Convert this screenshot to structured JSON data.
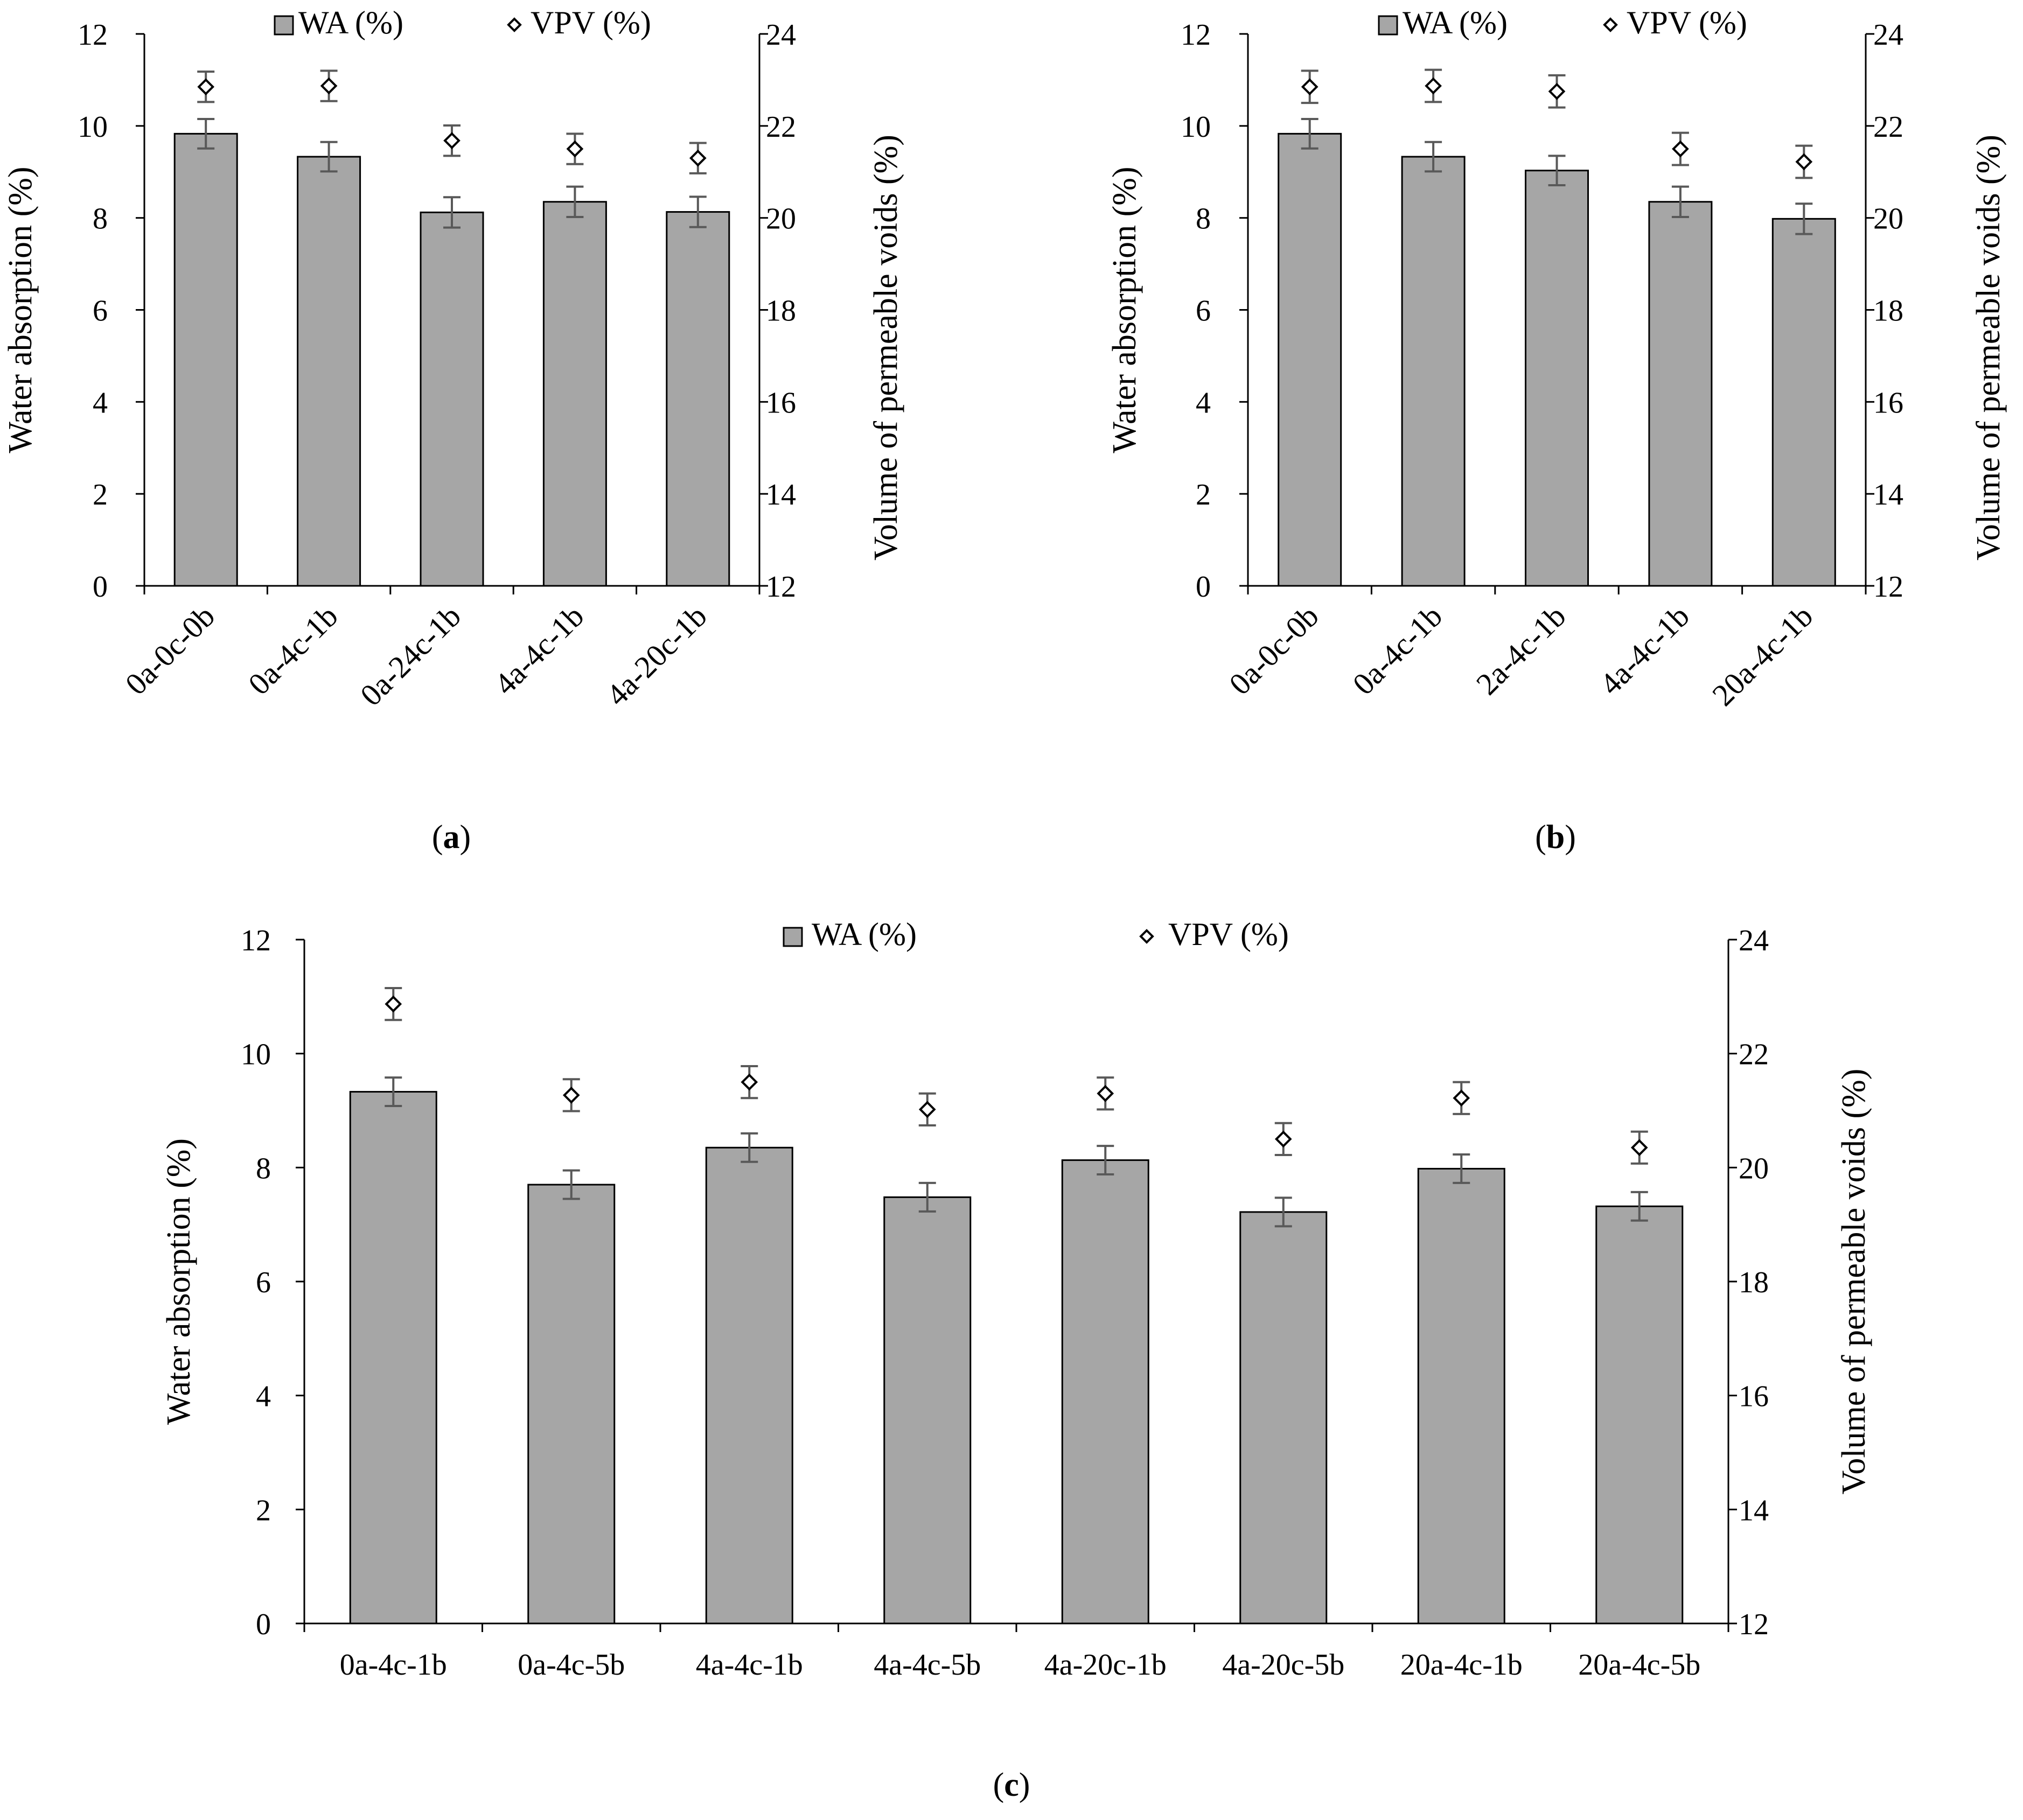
{
  "chart_data": [
    {
      "panel": "a",
      "caption_letter": "a",
      "type": "bar",
      "legend": [
        "WA (%)",
        "VPV (%)"
      ],
      "ylabel": "Water absorption (%)",
      "y2label": "Volume of permeable voids (%)",
      "ylim": [
        0,
        12
      ],
      "y2lim": [
        12,
        24
      ],
      "yticks": [
        "0",
        "2",
        "4",
        "6",
        "8",
        "10",
        "12"
      ],
      "y2ticks": [
        "12",
        "14",
        "16",
        "18",
        "20",
        "22",
        "24"
      ],
      "categories": [
        "0a-0c-0b",
        "0a-4c-1b",
        "0a-24c-1b",
        "4a-4c-1b",
        "4a-20c-1b"
      ],
      "series": [
        {
          "name": "WA (%)",
          "kind": "bar",
          "axis": "left",
          "values": [
            9.83,
            9.33,
            8.12,
            8.35,
            8.13
          ],
          "errors": [
            0.32,
            0.32,
            0.33,
            0.33,
            0.33
          ]
        },
        {
          "name": "VPV (%)",
          "kind": "marker",
          "axis": "right",
          "values": [
            22.85,
            22.87,
            21.68,
            21.5,
            21.3
          ],
          "errors": [
            0.33,
            0.33,
            0.33,
            0.33,
            0.33
          ]
        }
      ]
    },
    {
      "panel": "b",
      "caption_letter": "b",
      "type": "bar",
      "legend": [
        "WA (%)",
        "VPV (%)"
      ],
      "ylabel": "Water absorption (%)",
      "y2label": "Volume of permeable voids (%)",
      "ylim": [
        0,
        12
      ],
      "y2lim": [
        12,
        24
      ],
      "yticks": [
        "0",
        "2",
        "4",
        "6",
        "8",
        "10",
        "12"
      ],
      "y2ticks": [
        "12",
        "14",
        "16",
        "18",
        "20",
        "22",
        "24"
      ],
      "categories": [
        "0a-0c-0b",
        "0a-4c-1b",
        "2a-4c-1b",
        "4a-4c-1b",
        "20a-4c-1b"
      ],
      "series": [
        {
          "name": "WA (%)",
          "kind": "bar",
          "axis": "left",
          "values": [
            9.83,
            9.33,
            9.03,
            8.35,
            7.98
          ],
          "errors": [
            0.32,
            0.32,
            0.32,
            0.33,
            0.33
          ]
        },
        {
          "name": "VPV (%)",
          "kind": "marker",
          "axis": "right",
          "values": [
            22.85,
            22.87,
            22.75,
            21.5,
            21.22
          ],
          "errors": [
            0.35,
            0.35,
            0.35,
            0.35,
            0.35
          ]
        }
      ]
    },
    {
      "panel": "c",
      "caption_letter": "c",
      "type": "bar",
      "legend": [
        "WA (%)",
        "VPV (%)"
      ],
      "ylabel": "Water absorption (%)",
      "y2label": "Volume of permeable voids (%)",
      "ylim": [
        0,
        12
      ],
      "y2lim": [
        12,
        24
      ],
      "yticks": [
        "0",
        "2",
        "4",
        "6",
        "8",
        "10",
        "12"
      ],
      "y2ticks": [
        "12",
        "14",
        "16",
        "18",
        "20",
        "22",
        "24"
      ],
      "categories": [
        "0a-4c-1b",
        "0a-4c-5b",
        "4a-4c-1b",
        "4a-4c-5b",
        "4a-20c-1b",
        "4a-20c-5b",
        "20a-4c-1b",
        "20a-4c-5b"
      ],
      "series": [
        {
          "name": "WA (%)",
          "kind": "bar",
          "axis": "left",
          "values": [
            9.33,
            7.7,
            8.35,
            7.48,
            8.13,
            7.22,
            7.98,
            7.32
          ],
          "errors": [
            0.25,
            0.25,
            0.25,
            0.25,
            0.25,
            0.25,
            0.25,
            0.25
          ]
        },
        {
          "name": "VPV (%)",
          "kind": "marker",
          "axis": "right",
          "values": [
            22.87,
            21.27,
            21.5,
            21.02,
            21.3,
            20.5,
            21.22,
            20.35
          ],
          "errors": [
            0.28,
            0.28,
            0.28,
            0.28,
            0.28,
            0.28,
            0.28,
            0.28
          ]
        }
      ]
    }
  ],
  "colors": {
    "bar_fill": "#a6a6a6",
    "bar_stroke": "#000000",
    "error_bar": "#595959",
    "axis": "#000000",
    "marker_fill": "#ffffff"
  }
}
